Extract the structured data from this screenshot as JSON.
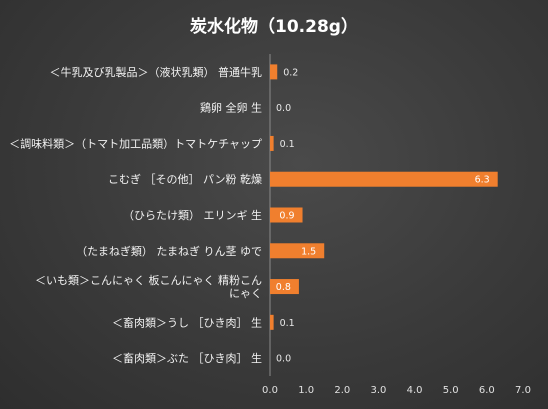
{
  "chart_data": {
    "type": "bar",
    "orientation": "horizontal",
    "title": "炭水化物（10.28g）",
    "categories": [
      "＜牛乳及び乳製品＞（液状乳類） 普通牛乳",
      "鶏卵 全卵 生",
      "＜調味料類＞（トマト加工品類）トマトケチャップ",
      "こむぎ ［その他］ パン粉 乾燥",
      "（ひらたけ類） エリンギ 生",
      "（たまねぎ類） たまねぎ りん茎 ゆで",
      "＜いも類＞こんにゃく 板こんにゃく 精粉こん\nにゃく",
      "＜畜肉類＞うし ［ひき肉］ 生",
      "＜畜肉類＞ぶた ［ひき肉］ 生"
    ],
    "values": [
      0.2,
      0.0,
      0.1,
      6.3,
      0.9,
      1.5,
      0.8,
      0.1,
      0.0
    ],
    "value_labels": [
      "0.2",
      "0.0",
      "0.1",
      "6.3",
      "0.9",
      "1.5",
      "0.8",
      "0.1",
      "0.0"
    ],
    "xlim": [
      0,
      7
    ],
    "xticks": [
      "0.0",
      "1.0",
      "2.0",
      "3.0",
      "4.0",
      "5.0",
      "6.0",
      "7.0"
    ],
    "grid": false,
    "legend": "none",
    "colors": {
      "bar": "#f07f2e",
      "bar_label_inside": "#ffffff",
      "bar_label_outside": "#e8e8e8",
      "text": "#f2f2f2",
      "axis_line": "#8a8a8a"
    }
  }
}
